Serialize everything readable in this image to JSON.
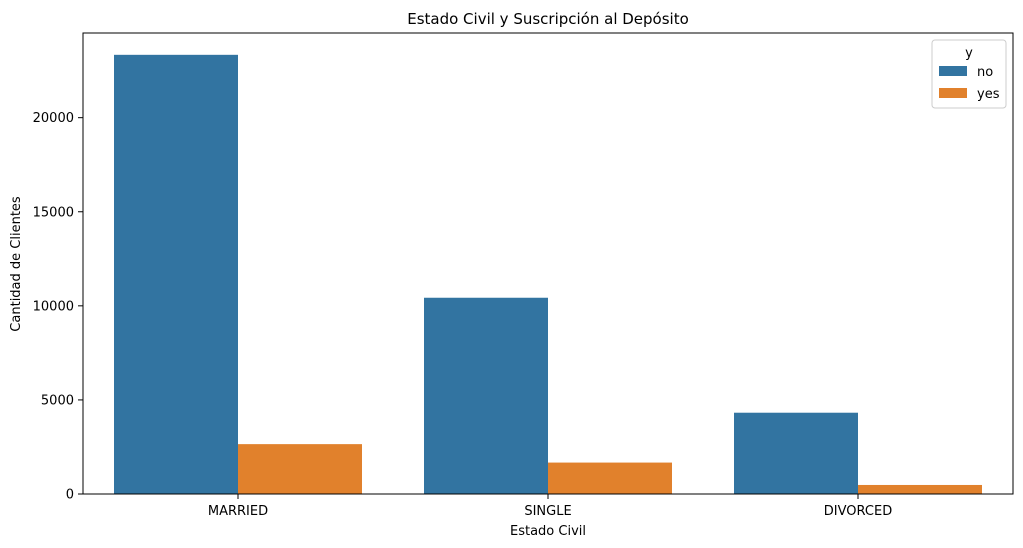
{
  "chart_data": {
    "type": "bar",
    "title": "Estado Civil y Suscripción al Depósito",
    "xlabel": "Estado Civil",
    "ylabel": "Cantidad de Clientes",
    "categories": [
      "MARRIED",
      "SINGLE",
      "DIVORCED"
    ],
    "series": [
      {
        "name": "no",
        "color": "#3274a1",
        "values": [
          23340,
          10430,
          4320
        ]
      },
      {
        "name": "yes",
        "color": "#e1812c",
        "values": [
          2650,
          1670,
          480
        ]
      }
    ],
    "yticks": [
      0,
      5000,
      10000,
      15000,
      20000
    ],
    "ylim": [
      0,
      24500
    ],
    "grid": false,
    "legend": {
      "title": "y",
      "placement": "top-right"
    }
  }
}
